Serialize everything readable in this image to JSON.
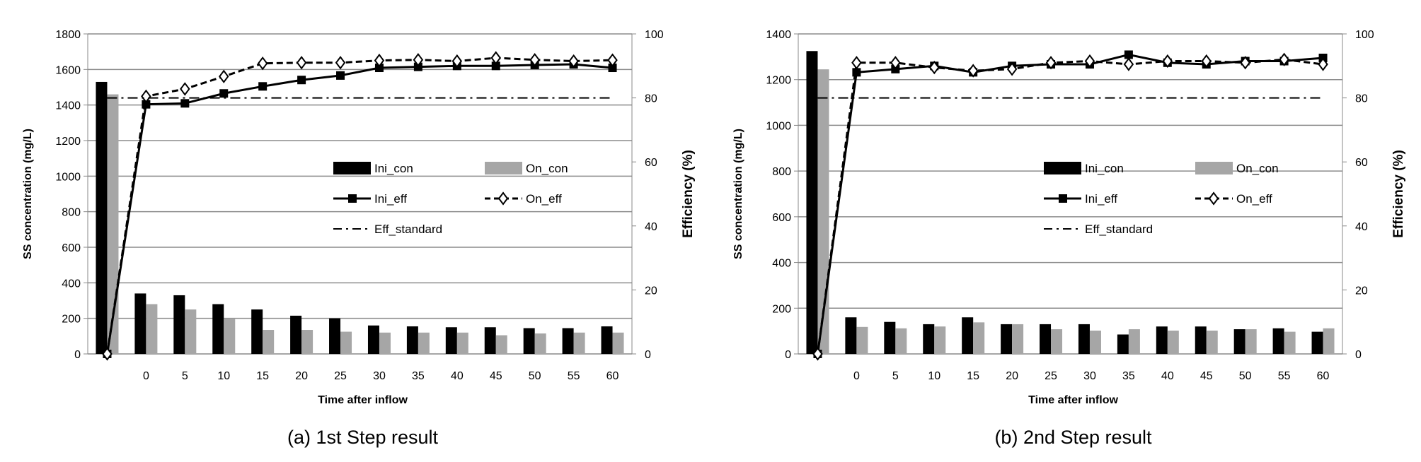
{
  "chart_data": [
    {
      "type": "bar",
      "caption": "(a) 1st Step result",
      "xlabel": "Time after inflow",
      "ylabel": "SS concentration (mg/L)",
      "y2label": "Efficiency (%)",
      "categories": [
        "",
        "0",
        "5",
        "10",
        "15",
        "20",
        "25",
        "30",
        "35",
        "40",
        "45",
        "50",
        "55",
        "60"
      ],
      "ylim": [
        0,
        1800
      ],
      "yticks": [
        0,
        200,
        400,
        600,
        800,
        1000,
        1200,
        1400,
        1600,
        1800
      ],
      "y2lim": [
        0,
        100
      ],
      "y2ticks": [
        0,
        20,
        40,
        60,
        80,
        100
      ],
      "grid": true,
      "legend_position": "center-right",
      "series": [
        {
          "name": "Ini_con",
          "kind": "bar",
          "axis": "left",
          "color": "#000000",
          "values": [
            1530,
            340,
            330,
            280,
            250,
            215,
            200,
            160,
            155,
            150,
            150,
            145,
            145,
            155
          ]
        },
        {
          "name": "On_con",
          "kind": "bar",
          "axis": "left",
          "color": "#a6a6a6",
          "values": [
            1460,
            280,
            250,
            200,
            135,
            135,
            125,
            120,
            120,
            120,
            105,
            115,
            120,
            120
          ]
        },
        {
          "name": "Ini_eff",
          "kind": "line",
          "axis": "right",
          "style": "solid",
          "marker": "square",
          "values": [
            0,
            78,
            78.3,
            81.4,
            83.6,
            85.6,
            87,
            89.4,
            89.7,
            90,
            90,
            90.3,
            90.5,
            89.4
          ]
        },
        {
          "name": "On_eff",
          "kind": "line",
          "axis": "right",
          "style": "dashed",
          "marker": "diamond",
          "values": [
            0,
            80.5,
            82.8,
            86.7,
            90.8,
            91,
            91,
            91.7,
            91.9,
            91.5,
            92.5,
            91.9,
            91.5,
            91.8
          ]
        },
        {
          "name": "Eff_standard",
          "kind": "line",
          "axis": "right",
          "style": "dash-dot",
          "marker": "none",
          "values": [
            80,
            80,
            80,
            80,
            80,
            80,
            80,
            80,
            80,
            80,
            80,
            80,
            80,
            80
          ]
        }
      ]
    },
    {
      "type": "bar",
      "caption": "(b) 2nd Step result",
      "xlabel": "Time after inflow",
      "ylabel": "SS concentration (mg/L)",
      "y2label": "Efficiency (%)",
      "categories": [
        "",
        "0",
        "5",
        "10",
        "15",
        "20",
        "25",
        "30",
        "35",
        "40",
        "45",
        "50",
        "55",
        "60"
      ],
      "ylim": [
        0,
        1400
      ],
      "yticks": [
        0,
        200,
        400,
        600,
        800,
        1000,
        1200,
        1400
      ],
      "y2lim": [
        0,
        100
      ],
      "y2ticks": [
        0,
        20,
        40,
        60,
        80,
        100
      ],
      "grid": true,
      "legend_position": "center-right",
      "series": [
        {
          "name": "Ini_con",
          "kind": "bar",
          "axis": "left",
          "color": "#000000",
          "values": [
            1325,
            160,
            140,
            130,
            160,
            130,
            130,
            130,
            85,
            120,
            120,
            108,
            112,
            97
          ]
        },
        {
          "name": "On_con",
          "kind": "bar",
          "axis": "left",
          "color": "#a6a6a6",
          "values": [
            1245,
            118,
            112,
            120,
            138,
            130,
            108,
            102,
            108,
            102,
            102,
            108,
            97,
            112
          ]
        },
        {
          "name": "Ini_eff",
          "kind": "line",
          "axis": "right",
          "style": "solid",
          "marker": "square",
          "values": [
            0,
            88,
            89,
            90,
            88,
            90,
            90.5,
            90.5,
            93.5,
            91,
            90.5,
            91.5,
            91.5,
            92.5
          ]
        },
        {
          "name": "On_eff",
          "kind": "line",
          "axis": "right",
          "style": "dashed",
          "marker": "diamond",
          "values": [
            0,
            91,
            91,
            89.5,
            88.5,
            89,
            91,
            91.5,
            90.5,
            91.5,
            91.5,
            91,
            92,
            90.5
          ]
        },
        {
          "name": "Eff_standard",
          "kind": "line",
          "axis": "right",
          "style": "dash-dot",
          "marker": "none",
          "values": [
            80,
            80,
            80,
            80,
            80,
            80,
            80,
            80,
            80,
            80,
            80,
            80,
            80,
            80
          ]
        }
      ]
    }
  ]
}
